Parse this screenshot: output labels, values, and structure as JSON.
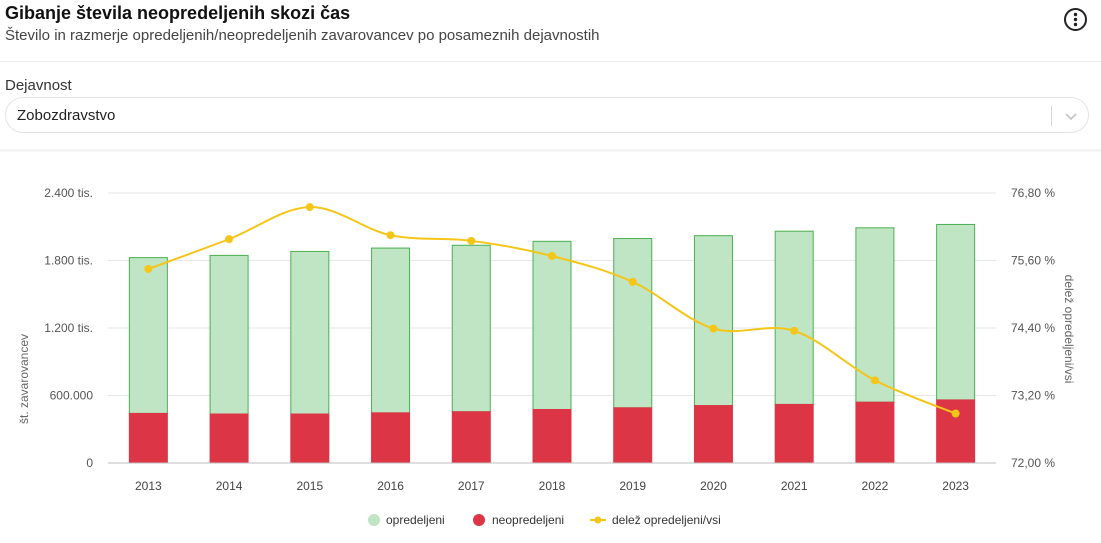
{
  "header": {
    "title": "Gibanje števila neopredeljenih skozi čas",
    "subtitle": "Število in razmerje opredeljenih/neopredeljenih zavarovancev po posameznih dejavnostih",
    "menu_icon": "more-vertical-icon"
  },
  "filter": {
    "label": "Dejavnost",
    "value": "Zobozdravstvo",
    "icon": "chevron-down-icon"
  },
  "colors": {
    "opredeljeni": "#bfe5c5",
    "opredeljeni_stroke": "#4caf50",
    "neopredeljeni": "#dc3545",
    "line": "#f5c518"
  },
  "chart_data": {
    "type": "bar",
    "stacked": true,
    "categories": [
      "2013",
      "2014",
      "2015",
      "2016",
      "2017",
      "2018",
      "2019",
      "2020",
      "2021",
      "2022",
      "2023"
    ],
    "series": [
      {
        "name": "opredeljeni",
        "type": "bar",
        "axis": "left",
        "values": [
          1385000,
          1410000,
          1445000,
          1465000,
          1480000,
          1495000,
          1505000,
          1510000,
          1540000,
          1550000,
          1560000
        ]
      },
      {
        "name": "neopredeljeni",
        "type": "bar",
        "axis": "left",
        "values": [
          445000,
          440000,
          440000,
          450000,
          460000,
          480000,
          495000,
          515000,
          525000,
          545000,
          565000
        ]
      },
      {
        "name": "delež opredeljeni/vsi",
        "type": "line",
        "axis": "right",
        "values": [
          75.45,
          75.98,
          76.55,
          76.05,
          75.95,
          75.68,
          75.22,
          74.39,
          74.35,
          73.47,
          72.88
        ]
      }
    ],
    "ylabel": "št. zavarovancev",
    "y2label": "delež opredeljeni/vsi",
    "ylim": [
      0,
      2400000
    ],
    "y2lim": [
      72.0,
      76.8
    ],
    "yticks": [
      {
        "value": 0,
        "label": "0"
      },
      {
        "value": 600000,
        "label": "600.000"
      },
      {
        "value": 1200000,
        "label": "1.200 tis."
      },
      {
        "value": 1800000,
        "label": "1.800 tis."
      },
      {
        "value": 2400000,
        "label": "2.400 tis."
      }
    ],
    "y2ticks": [
      {
        "value": 72.0,
        "label": "72,00 %"
      },
      {
        "value": 73.2,
        "label": "73,20 %"
      },
      {
        "value": 74.4,
        "label": "74,40 %"
      },
      {
        "value": 75.6,
        "label": "75,60 %"
      },
      {
        "value": 76.8,
        "label": "76,80 %"
      }
    ],
    "grid": true,
    "legend_position": "bottom-center"
  }
}
